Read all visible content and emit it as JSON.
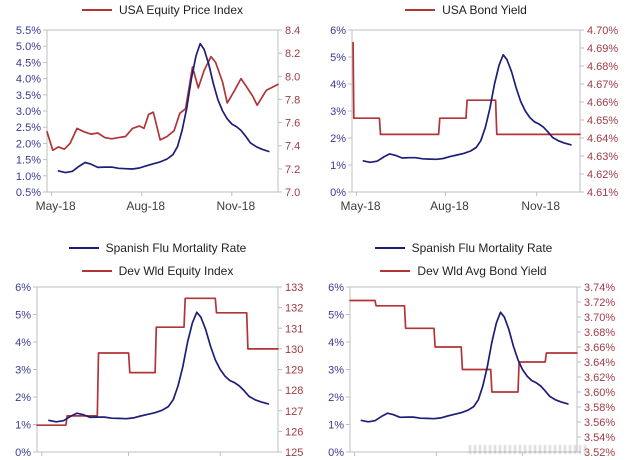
{
  "page": {
    "background": "#ffffff"
  },
  "colors": {
    "mortality_line": "#1e1e78",
    "indicator_line": "#b13437",
    "left_axis_text": "#3a3a94",
    "right_axis_text": "#a23b46",
    "x_axis_text": "#3d3d3d",
    "legend_text": "#1f1f1f",
    "plot_border": "#bfbfbf"
  },
  "mortality": {
    "label": "Spanish Flu Mortality Rate",
    "unit": "%",
    "points": [
      [
        0.05,
        1.15
      ],
      [
        0.08,
        1.1
      ],
      [
        0.11,
        1.14
      ],
      [
        0.14,
        1.3
      ],
      [
        0.165,
        1.41
      ],
      [
        0.19,
        1.36
      ],
      [
        0.22,
        1.26
      ],
      [
        0.25,
        1.27
      ],
      [
        0.28,
        1.27
      ],
      [
        0.31,
        1.23
      ],
      [
        0.34,
        1.22
      ],
      [
        0.37,
        1.21
      ],
      [
        0.4,
        1.24
      ],
      [
        0.43,
        1.31
      ],
      [
        0.46,
        1.37
      ],
      [
        0.49,
        1.43
      ],
      [
        0.52,
        1.52
      ],
      [
        0.545,
        1.65
      ],
      [
        0.565,
        1.9
      ],
      [
        0.585,
        2.4
      ],
      [
        0.605,
        3.1
      ],
      [
        0.625,
        4.0
      ],
      [
        0.645,
        4.7
      ],
      [
        0.663,
        5.08
      ],
      [
        0.68,
        4.9
      ],
      [
        0.7,
        4.45
      ],
      [
        0.72,
        3.85
      ],
      [
        0.74,
        3.35
      ],
      [
        0.76,
        3.0
      ],
      [
        0.78,
        2.76
      ],
      [
        0.8,
        2.6
      ],
      [
        0.82,
        2.52
      ],
      [
        0.84,
        2.4
      ],
      [
        0.86,
        2.22
      ],
      [
        0.88,
        2.02
      ],
      [
        0.905,
        1.9
      ],
      [
        0.93,
        1.82
      ],
      [
        0.96,
        1.75
      ]
    ]
  },
  "chart_data": [
    {
      "id": "usa-equity",
      "type": "line",
      "title": "",
      "legend": [
        {
          "label": "USA Equity Price Index",
          "series": "indicator"
        }
      ],
      "left_axis": {
        "range": [
          0.5,
          5.5
        ],
        "ticks": [
          "5.5%",
          "5.0%",
          "4.5%",
          "4.0%",
          "3.5%",
          "3.0%",
          "2.5%",
          "2.0%",
          "1.5%",
          "1.0%",
          "0.5%"
        ]
      },
      "right_axis": {
        "range": [
          7.0,
          8.4
        ],
        "ticks": [
          "8.4",
          "8.2",
          "8.0",
          "7.8",
          "7.6",
          "7.4",
          "7.2",
          "7.0"
        ]
      },
      "x_axis": {
        "labels": [
          "May-18",
          "Aug-18",
          "Nov-18"
        ],
        "fractions": [
          0.02,
          0.41,
          0.8
        ],
        "labels_visible": true
      },
      "indicator": {
        "label": "USA Equity Price Index",
        "axis": "right",
        "step": false,
        "points": [
          [
            0.0,
            7.52
          ],
          [
            0.025,
            7.36
          ],
          [
            0.05,
            7.39
          ],
          [
            0.075,
            7.37
          ],
          [
            0.1,
            7.42
          ],
          [
            0.13,
            7.55
          ],
          [
            0.16,
            7.52
          ],
          [
            0.19,
            7.5
          ],
          [
            0.22,
            7.51
          ],
          [
            0.25,
            7.47
          ],
          [
            0.28,
            7.46
          ],
          [
            0.31,
            7.47
          ],
          [
            0.34,
            7.48
          ],
          [
            0.37,
            7.55
          ],
          [
            0.4,
            7.57
          ],
          [
            0.42,
            7.55
          ],
          [
            0.44,
            7.67
          ],
          [
            0.46,
            7.69
          ],
          [
            0.49,
            7.45
          ],
          [
            0.52,
            7.48
          ],
          [
            0.55,
            7.53
          ],
          [
            0.575,
            7.68
          ],
          [
            0.6,
            7.72
          ],
          [
            0.63,
            8.08
          ],
          [
            0.655,
            7.9
          ],
          [
            0.68,
            8.05
          ],
          [
            0.71,
            8.17
          ],
          [
            0.73,
            8.12
          ],
          [
            0.76,
            7.95
          ],
          [
            0.78,
            7.77
          ],
          [
            0.81,
            7.87
          ],
          [
            0.84,
            7.98
          ],
          [
            0.86,
            7.92
          ],
          [
            0.89,
            7.83
          ],
          [
            0.91,
            7.75
          ],
          [
            0.95,
            7.88
          ],
          [
            1.0,
            7.93
          ]
        ]
      }
    },
    {
      "id": "usa-bond-yield",
      "type": "line",
      "title": "",
      "legend": [
        {
          "label": "USA Bond Yield",
          "series": "indicator"
        }
      ],
      "left_axis": {
        "range": [
          0,
          6
        ],
        "ticks": [
          "6%",
          "5%",
          "4%",
          "3%",
          "2%",
          "1%",
          "0%"
        ]
      },
      "right_axis": {
        "range": [
          4.61,
          4.7
        ],
        "ticks": [
          "4.70%",
          "4.69%",
          "4.68%",
          "4.67%",
          "4.66%",
          "4.65%",
          "4.64%",
          "4.63%",
          "4.62%",
          "4.61%"
        ]
      },
      "x_axis": {
        "labels": [
          "May-18",
          "Aug-18",
          "Nov-18"
        ],
        "fractions": [
          0.02,
          0.41,
          0.81
        ],
        "labels_visible": true
      },
      "indicator": {
        "label": "USA Bond Yield",
        "axis": "right",
        "step": true,
        "points": [
          [
            0.005,
            4.693
          ],
          [
            0.008,
            4.651
          ],
          [
            0.12,
            4.651
          ],
          [
            0.125,
            4.642
          ],
          [
            0.38,
            4.642
          ],
          [
            0.385,
            4.651
          ],
          [
            0.5,
            4.651
          ],
          [
            0.505,
            4.661
          ],
          [
            0.63,
            4.661
          ],
          [
            0.635,
            4.642
          ],
          [
            1.0,
            4.642
          ]
        ]
      }
    },
    {
      "id": "dev-wld-equity",
      "type": "line",
      "title": "",
      "legend": [
        {
          "label": "Spanish Flu Mortality Rate",
          "series": "mortality"
        },
        {
          "label": "Dev Wld Equity Index",
          "series": "indicator"
        }
      ],
      "left_axis": {
        "range": [
          0,
          6
        ],
        "ticks": [
          "6%",
          "5%",
          "4%",
          "3%",
          "2%",
          "1%",
          "0%"
        ]
      },
      "right_axis": {
        "range": [
          125,
          133
        ],
        "ticks": [
          "133",
          "132",
          "131",
          "130",
          "129",
          "128",
          "127",
          "126",
          "125"
        ]
      },
      "x_axis": {
        "labels": [],
        "fractions": [
          0.02,
          0.38,
          0.76
        ],
        "labels_visible": false
      },
      "indicator": {
        "label": "Dev Wld Equity Index",
        "axis": "right",
        "step": true,
        "points": [
          [
            0.0,
            126.3
          ],
          [
            0.12,
            126.3
          ],
          [
            0.125,
            126.75
          ],
          [
            0.25,
            126.75
          ],
          [
            0.255,
            129.8
          ],
          [
            0.38,
            129.8
          ],
          [
            0.385,
            128.85
          ],
          [
            0.49,
            128.85
          ],
          [
            0.495,
            131.05
          ],
          [
            0.61,
            131.05
          ],
          [
            0.615,
            132.45
          ],
          [
            0.74,
            132.45
          ],
          [
            0.745,
            131.75
          ],
          [
            0.87,
            131.75
          ],
          [
            0.875,
            130.0
          ],
          [
            1.0,
            130.0
          ]
        ]
      }
    },
    {
      "id": "dev-wld-bond-yield",
      "type": "line",
      "title": "",
      "legend": [
        {
          "label": "Spanish Flu Mortality Rate",
          "series": "mortality"
        },
        {
          "label": "Dev Wld Avg Bond Yield",
          "series": "indicator"
        }
      ],
      "left_axis": {
        "range": [
          0,
          6
        ],
        "ticks": [
          "6%",
          "5%",
          "4%",
          "3%",
          "2%",
          "1%",
          "0%"
        ]
      },
      "right_axis": {
        "range": [
          3.52,
          3.74
        ],
        "ticks": [
          "3.74%",
          "3.72%",
          "3.70%",
          "3.68%",
          "3.66%",
          "3.64%",
          "3.62%",
          "3.60%",
          "3.58%",
          "3.56%",
          "3.54%",
          "3.52%"
        ]
      },
      "x_axis": {
        "labels": [],
        "fractions": [
          0.02,
          0.38,
          0.76
        ],
        "labels_visible": false
      },
      "indicator": {
        "label": "Dev Wld Avg Bond Yield",
        "axis": "right",
        "step": true,
        "points": [
          [
            0.0,
            3.722
          ],
          [
            0.11,
            3.722
          ],
          [
            0.115,
            3.715
          ],
          [
            0.24,
            3.715
          ],
          [
            0.245,
            3.685
          ],
          [
            0.37,
            3.685
          ],
          [
            0.375,
            3.66
          ],
          [
            0.49,
            3.66
          ],
          [
            0.495,
            3.63
          ],
          [
            0.62,
            3.63
          ],
          [
            0.625,
            3.6
          ],
          [
            0.74,
            3.6
          ],
          [
            0.745,
            3.64
          ],
          [
            0.86,
            3.64
          ],
          [
            0.865,
            3.652
          ],
          [
            1.0,
            3.652
          ]
        ]
      }
    }
  ]
}
